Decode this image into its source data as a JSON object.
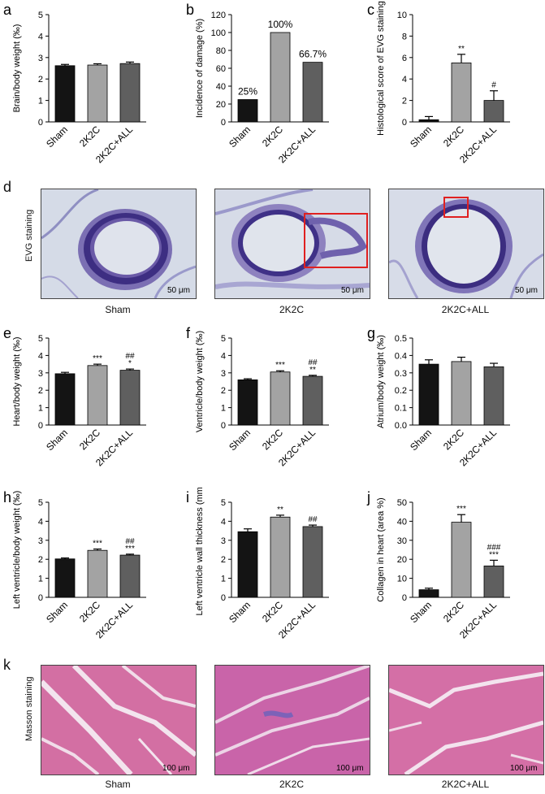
{
  "chart_data": [
    {
      "id": "a",
      "letter": "a",
      "type": "bar",
      "ylabel": "Brain/body weight (‰)",
      "categories": [
        "Sham",
        "2K2C",
        "2K2C+ALL"
      ],
      "values": [
        2.62,
        2.65,
        2.72
      ],
      "errors": [
        0.06,
        0.06,
        0.07
      ],
      "ylim": [
        0,
        5
      ],
      "yticks": [
        "0",
        "1",
        "2",
        "3",
        "4",
        "5"
      ],
      "annotations": [
        "",
        "",
        ""
      ],
      "value_labels": [
        "",
        "",
        ""
      ]
    },
    {
      "id": "b",
      "letter": "b",
      "type": "bar",
      "ylabel": "Incidence of damage (%)",
      "categories": [
        "Sham",
        "2K2C",
        "2K2C+ALL"
      ],
      "values": [
        25,
        100,
        66.7
      ],
      "errors": [
        0,
        0,
        0
      ],
      "ylim": [
        0,
        120
      ],
      "yticks": [
        "0",
        "20",
        "40",
        "60",
        "80",
        "100",
        "120"
      ],
      "annotations": [
        "",
        "",
        ""
      ],
      "value_labels": [
        "25%",
        "100%",
        "66.7%"
      ]
    },
    {
      "id": "c",
      "letter": "c",
      "type": "bar",
      "ylabel": "Histological score of EVG staining",
      "categories": [
        "Sham",
        "2K2C",
        "2K2C+ALL"
      ],
      "values": [
        0.2,
        5.5,
        2.0
      ],
      "errors": [
        0.3,
        0.8,
        0.9
      ],
      "ylim": [
        0,
        10
      ],
      "yticks": [
        "0",
        "2",
        "4",
        "6",
        "8",
        "10"
      ],
      "annotations": [
        "",
        "**",
        "#"
      ],
      "value_labels": [
        "",
        "",
        ""
      ]
    },
    {
      "id": "e",
      "letter": "e",
      "type": "bar",
      "ylabel": "Heart/body weight (‰)",
      "categories": [
        "Sham",
        "2K2C",
        "2K2C+ALL"
      ],
      "values": [
        2.95,
        3.42,
        3.15
      ],
      "errors": [
        0.08,
        0.08,
        0.07
      ],
      "ylim": [
        0,
        5
      ],
      "yticks": [
        "0",
        "1",
        "2",
        "3",
        "4",
        "5"
      ],
      "annotations": [
        "",
        "***",
        "##\n*"
      ],
      "value_labels": [
        "",
        "",
        ""
      ]
    },
    {
      "id": "f",
      "letter": "f",
      "type": "bar",
      "ylabel": "Ventricle/body weight (‰)",
      "categories": [
        "Sham",
        "2K2C",
        "2K2C+ALL"
      ],
      "values": [
        2.6,
        3.05,
        2.8
      ],
      "errors": [
        0.06,
        0.07,
        0.06
      ],
      "ylim": [
        0,
        5
      ],
      "yticks": [
        "0",
        "1",
        "2",
        "3",
        "4",
        "5"
      ],
      "annotations": [
        "",
        "***",
        "##\n**"
      ],
      "value_labels": [
        "",
        "",
        ""
      ]
    },
    {
      "id": "g",
      "letter": "g",
      "type": "bar",
      "ylabel": "Atrium/body weight (‰)",
      "categories": [
        "Sham",
        "2K2C",
        "2K2C+ALL"
      ],
      "values": [
        0.35,
        0.365,
        0.335
      ],
      "errors": [
        0.025,
        0.025,
        0.02
      ],
      "ylim": [
        0,
        0.5
      ],
      "yticks": [
        "0.0",
        "0.1",
        "0.2",
        "0.3",
        "0.4",
        "0.5"
      ],
      "annotations": [
        "",
        "",
        ""
      ],
      "value_labels": [
        "",
        "",
        ""
      ]
    },
    {
      "id": "h",
      "letter": "h",
      "type": "bar",
      "ylabel": "Left ventricle/body weight (‰)",
      "categories": [
        "Sham",
        "2K2C",
        "2K2C+ALL"
      ],
      "values": [
        2.02,
        2.47,
        2.22
      ],
      "errors": [
        0.05,
        0.07,
        0.05
      ],
      "ylim": [
        0,
        5
      ],
      "yticks": [
        "0",
        "1",
        "2",
        "3",
        "4",
        "5"
      ],
      "annotations": [
        "",
        "***",
        "##\n***"
      ],
      "value_labels": [
        "",
        "",
        ""
      ]
    },
    {
      "id": "i",
      "letter": "i",
      "type": "bar",
      "ylabel": "Left ventricle wall thickness (mm)",
      "categories": [
        "Sham",
        "2K2C",
        "2K2C+ALL"
      ],
      "values": [
        3.45,
        4.22,
        3.72
      ],
      "errors": [
        0.15,
        0.1,
        0.08
      ],
      "ylim": [
        0,
        5
      ],
      "yticks": [
        "0",
        "1",
        "2",
        "3",
        "4",
        "5"
      ],
      "annotations": [
        "",
        "**",
        "##"
      ],
      "value_labels": [
        "",
        "",
        ""
      ]
    },
    {
      "id": "j",
      "letter": "j",
      "type": "bar",
      "ylabel": "Collagen in heart (area %)",
      "categories": [
        "Sham",
        "2K2C",
        "2K2C+ALL"
      ],
      "values": [
        4.0,
        39.5,
        16.5
      ],
      "errors": [
        0.8,
        4.0,
        3.0
      ],
      "ylim": [
        0,
        50
      ],
      "yticks": [
        "0",
        "10",
        "20",
        "30",
        "40",
        "50"
      ],
      "annotations": [
        "",
        "***",
        "###\n***"
      ],
      "value_labels": [
        "",
        "",
        ""
      ]
    }
  ],
  "bar_colors": [
    "#141414",
    "#a3a3a3",
    "#5f5f5f"
  ],
  "panel_d": {
    "letter": "d",
    "side_label": "EVG staining",
    "images": [
      {
        "caption": "Sham",
        "scalebar": "50 μm"
      },
      {
        "caption": "2K2C",
        "scalebar": "50 μm"
      },
      {
        "caption": "2K2C+ALL",
        "scalebar": "50 μm"
      }
    ]
  },
  "panel_k": {
    "letter": "k",
    "side_label": "Masson staining",
    "images": [
      {
        "caption": "Sham",
        "scalebar": "100 μm"
      },
      {
        "caption": "2K2C",
        "scalebar": "100 μm"
      },
      {
        "caption": "2K2C+ALL",
        "scalebar": "100 μm"
      }
    ]
  }
}
